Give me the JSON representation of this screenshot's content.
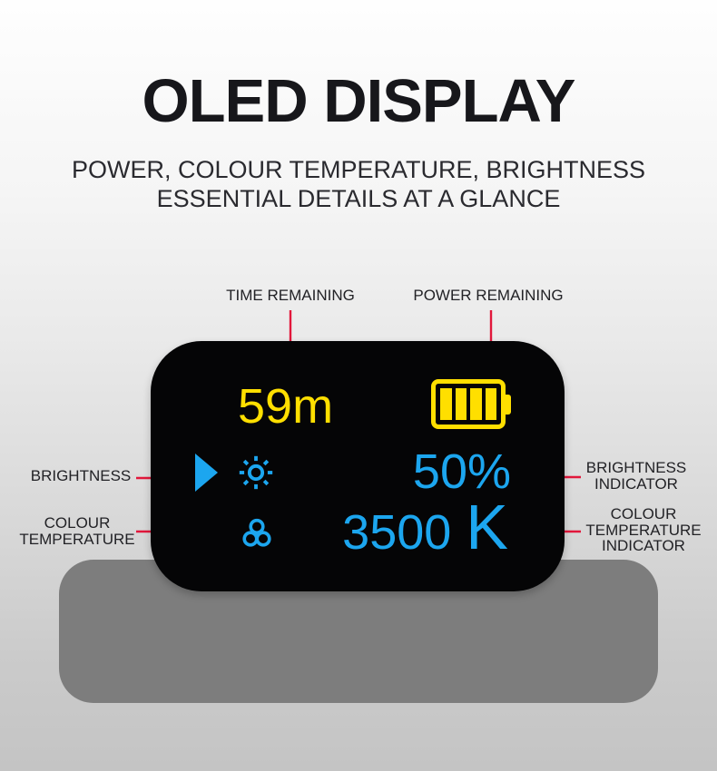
{
  "page": {
    "title": "OLED DISPLAY",
    "subtitle_line1": "POWER, COLOUR TEMPERATURE, BRIGHTNESS",
    "subtitle_line2": "ESSENTIAL DETAILS AT A GLANCE"
  },
  "annotations": {
    "time_remaining": "TIME REMAINING",
    "power_remaining": "POWER REMAINING",
    "brightness": "BRIGHTNESS",
    "colour_temperature": [
      "COLOUR",
      "TEMPERATURE"
    ],
    "brightness_indicator": [
      "BRIGHTNESS",
      "INDICATOR"
    ],
    "colour_temperature_indicator": [
      "COLOUR",
      "TEMPERATURE",
      "INDICATOR"
    ]
  },
  "oled_screen": {
    "time_remaining_value": "59m",
    "battery_level_bars": 4,
    "brightness_value": "50%",
    "colour_temperature_value": "3500",
    "colour_temperature_unit": "K"
  },
  "icons": {
    "battery": "battery-icon",
    "play": "play-icon",
    "brightness": "brightness-sun-icon",
    "colour_filter": "colour-filter-icon",
    "arrows": "red-pointer-arrow-icon"
  },
  "colors": {
    "screen_background": "#050506",
    "screen_yellow": "#ffdf00",
    "screen_blue": "#1ca6ef",
    "arrow_red": "#e2173b",
    "device_body_gray": "#7d7d7d",
    "heading_text": "#17171b"
  }
}
